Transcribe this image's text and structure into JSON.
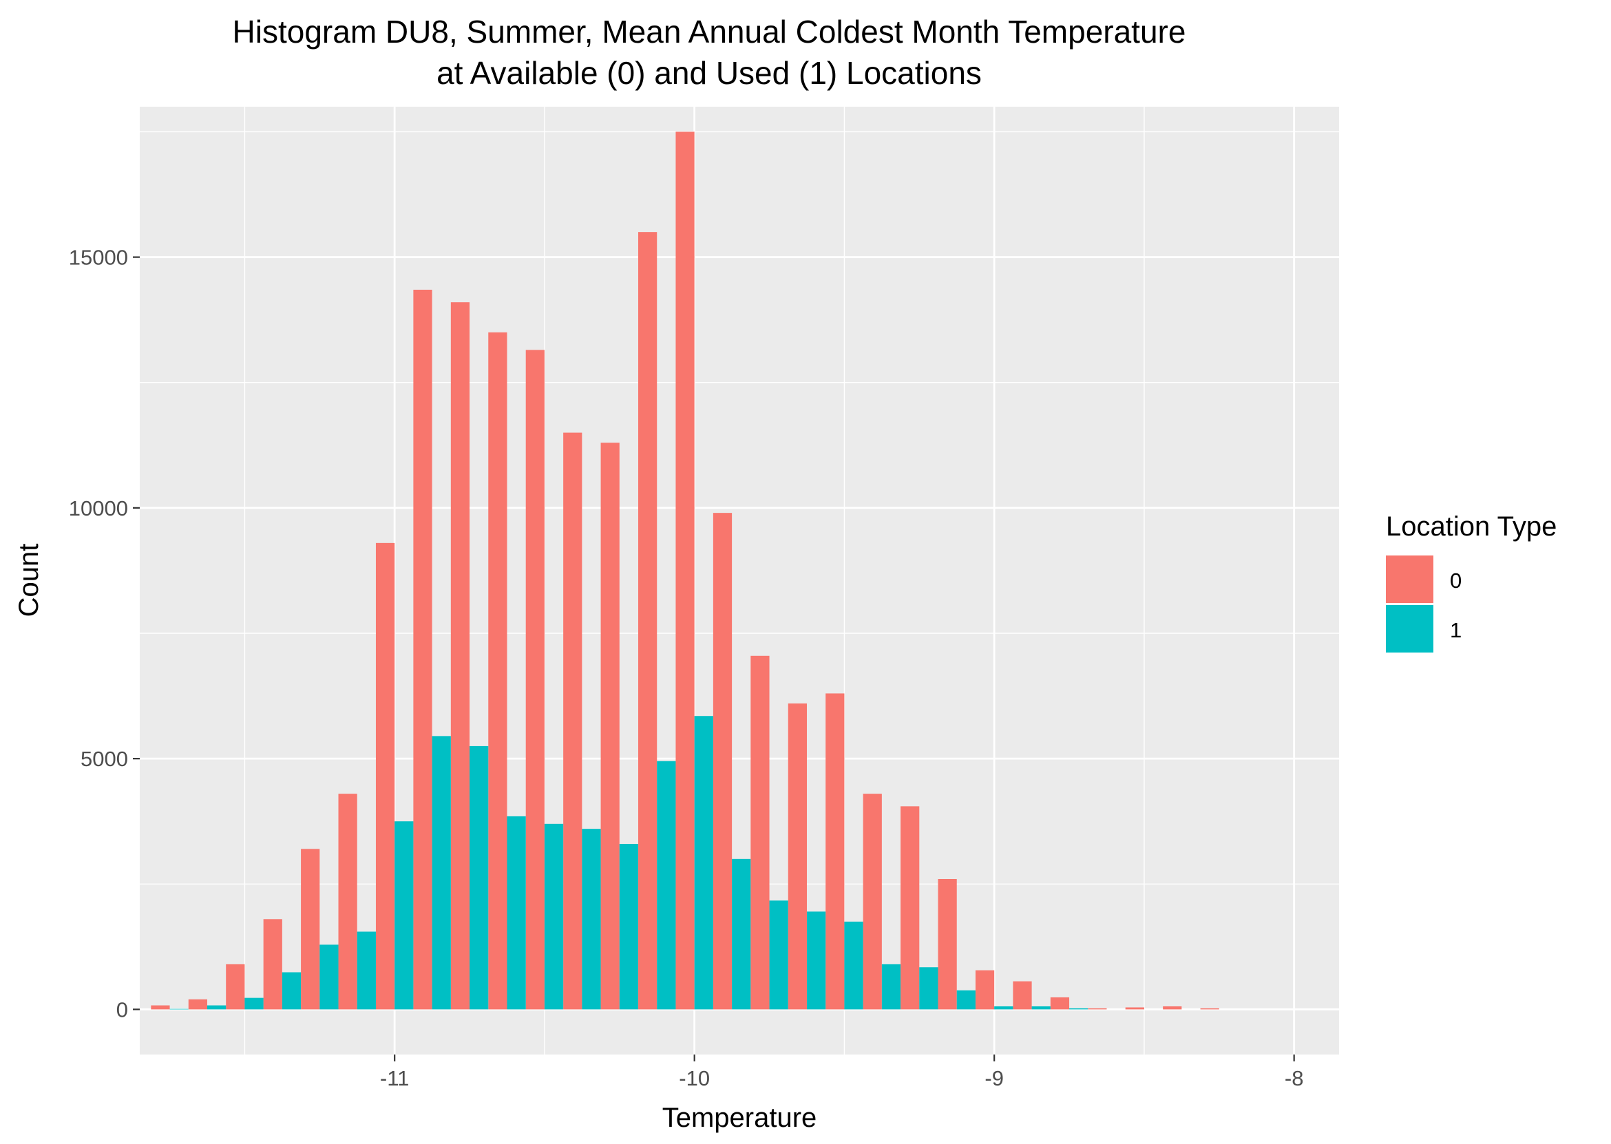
{
  "chart_data": {
    "type": "bar",
    "title_lines": [
      "Histogram DU8, Summer, Mean Annual Coldest Month Temperature",
      "at Available (0) and Used (1) Locations"
    ],
    "xlabel": "Temperature",
    "ylabel": "Count",
    "xlim": [
      -11.85,
      -7.85
    ],
    "ylim": [
      -900,
      18000
    ],
    "x_ticks": [
      -11,
      -10,
      -9,
      -8
    ],
    "x_tick_labels": [
      "-11",
      "-10",
      "-9",
      "-8"
    ],
    "x_minor_ticks": [
      -11.5,
      -10.5,
      -9.5,
      -8.5
    ],
    "y_ticks": [
      0,
      5000,
      10000,
      15000
    ],
    "y_tick_labels": [
      "0",
      "5000",
      "10000",
      "15000"
    ],
    "y_minor_ticks": [
      2500,
      7500,
      12500,
      17500
    ],
    "grid": true,
    "panel_background": "#ebebeb",
    "bin_width": 0.125,
    "bin_centers": [
      -11.75,
      -11.625,
      -11.5,
      -11.375,
      -11.25,
      -11.125,
      -11.0,
      -10.875,
      -10.75,
      -10.625,
      -10.5,
      -10.375,
      -10.25,
      -10.125,
      -10.0,
      -9.875,
      -9.75,
      -9.625,
      -9.5,
      -9.375,
      -9.25,
      -9.125,
      -9.0,
      -8.875,
      -8.75,
      -8.625,
      -8.5,
      -8.375,
      -8.25,
      -8.125
    ],
    "legend": {
      "title": "Location Type",
      "position": "right"
    },
    "series": [
      {
        "name": "0",
        "color": "#F8766D",
        "values": [
          80,
          200,
          900,
          1800,
          3200,
          4300,
          9300,
          14350,
          14100,
          13500,
          13150,
          11500,
          11300,
          15500,
          17500,
          9900,
          7050,
          6100,
          6300,
          4300,
          4050,
          2600,
          780,
          560,
          240,
          20,
          40,
          60,
          20,
          0
        ]
      },
      {
        "name": "1",
        "color": "#00BFC4",
        "values": [
          10,
          80,
          230,
          740,
          1290,
          1550,
          3750,
          5450,
          5250,
          3850,
          3700,
          3600,
          3300,
          4950,
          5850,
          3000,
          2170,
          1950,
          1750,
          900,
          840,
          380,
          60,
          60,
          20,
          0,
          0,
          0,
          0,
          0
        ]
      }
    ]
  }
}
